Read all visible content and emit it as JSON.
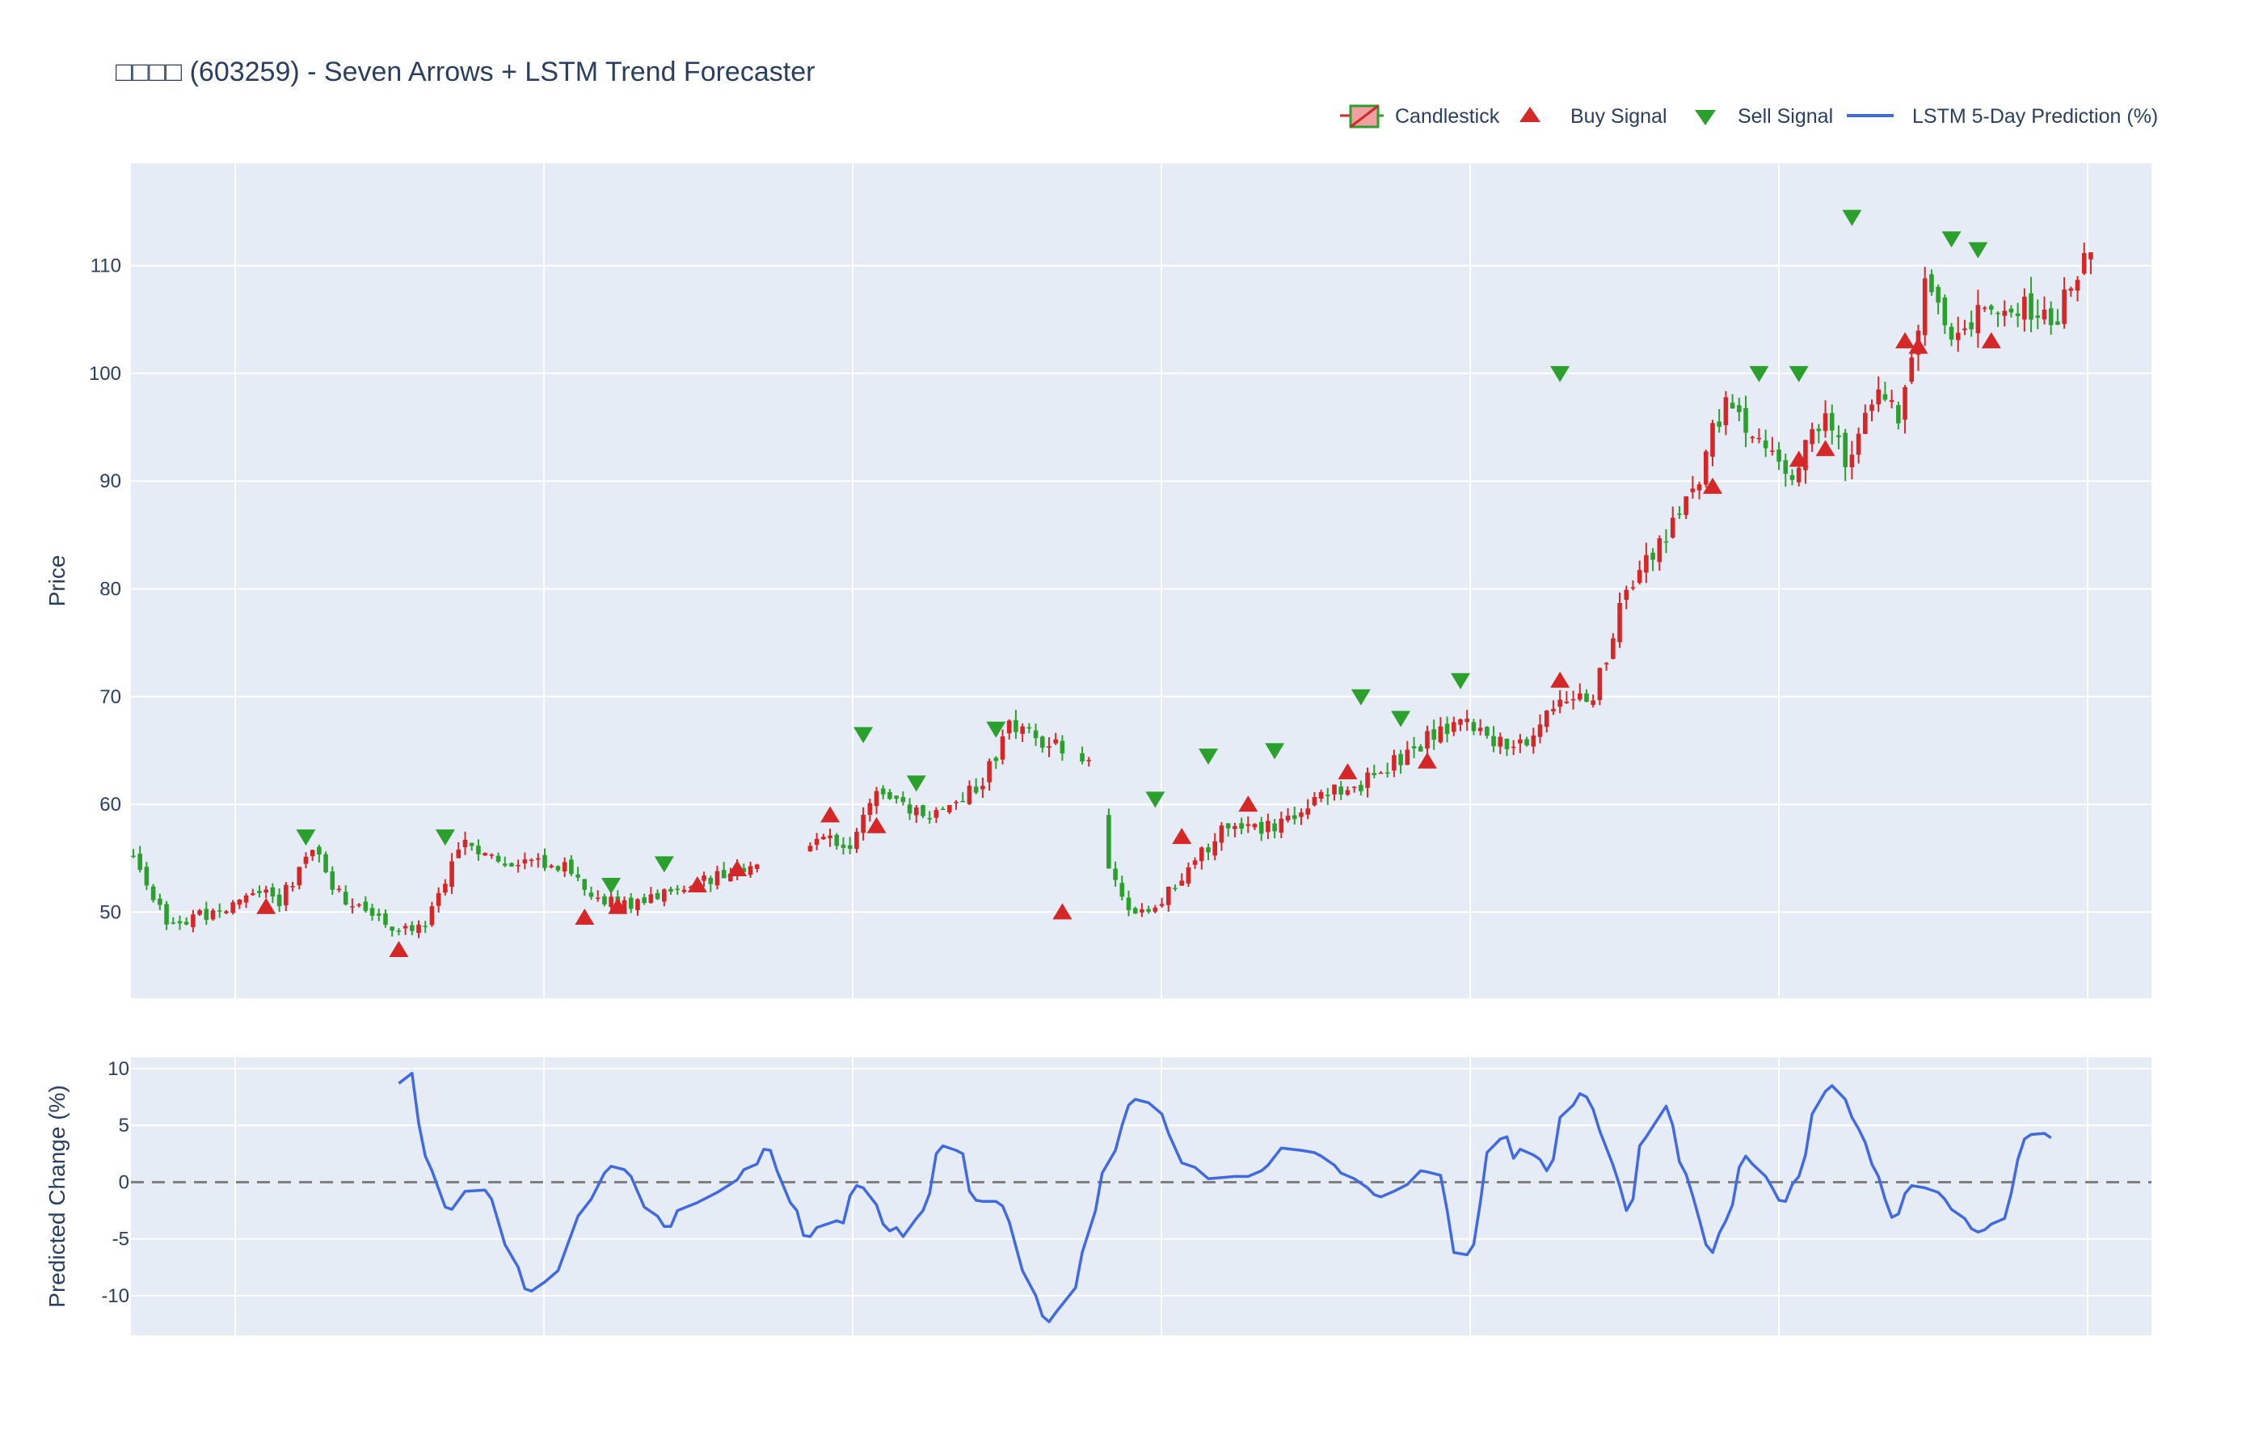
{
  "chart_data": [
    {
      "type": "candlestick",
      "title": "□□□□ (603259) - Seven Arrows + LSTM Trend Forecaster",
      "ylabel": "Price",
      "ylim": [
        42,
        119.5
      ],
      "yticks": [
        50,
        60,
        70,
        80,
        90,
        100,
        110
      ],
      "legend_position": "top-right",
      "legend": [
        {
          "label": "Candlestick",
          "kind": "candle"
        },
        {
          "label": "Buy Signal",
          "kind": "buy"
        },
        {
          "label": "Sell Signal",
          "kind": "sell"
        },
        {
          "label": "LSTM 5-Day Prediction (%)",
          "kind": "line"
        }
      ],
      "colors": {
        "up": "#d62728",
        "down": "#2ca02c",
        "buy": "#d62728",
        "sell": "#2ca02c",
        "plot_bg": "#e5ecf6",
        "grid": "#ffffff",
        "line": "#4169e1"
      },
      "anchors": [
        [
          0,
          55
        ],
        [
          5,
          49
        ],
        [
          12,
          50
        ],
        [
          18,
          52
        ],
        [
          22,
          51
        ],
        [
          27,
          56
        ],
        [
          30,
          52
        ],
        [
          36,
          50
        ],
        [
          40,
          48
        ],
        [
          44,
          49
        ],
        [
          50,
          57
        ],
        [
          54,
          55
        ],
        [
          60,
          54.5
        ],
        [
          65,
          54
        ],
        [
          70,
          51
        ],
        [
          75,
          50.5
        ],
        [
          80,
          52
        ],
        [
          85,
          53
        ],
        [
          90,
          53.5
        ],
        [
          98,
          54
        ],
        [
          104,
          57
        ],
        [
          108,
          56.5
        ],
        [
          112,
          62
        ],
        [
          116,
          60
        ],
        [
          120,
          59
        ],
        [
          124,
          60
        ],
        [
          128,
          62
        ],
        [
          132,
          67
        ],
        [
          136,
          66
        ],
        [
          140,
          65
        ],
        [
          145,
          64
        ],
        [
          147,
          54
        ],
        [
          150,
          50
        ],
        [
          155,
          51
        ],
        [
          160,
          55
        ],
        [
          165,
          58
        ],
        [
          170,
          57.5
        ],
        [
          175,
          59
        ],
        [
          180,
          61
        ],
        [
          185,
          62
        ],
        [
          190,
          64
        ],
        [
          195,
          66
        ],
        [
          200,
          68
        ],
        [
          205,
          66
        ],
        [
          210,
          65
        ],
        [
          215,
          70
        ],
        [
          220,
          70
        ],
        [
          225,
          80
        ],
        [
          230,
          84
        ],
        [
          235,
          89
        ],
        [
          240,
          98
        ],
        [
          245,
          93
        ],
        [
          250,
          91
        ],
        [
          255,
          97
        ],
        [
          258,
          92
        ],
        [
          262,
          98
        ],
        [
          266,
          96
        ],
        [
          270,
          108
        ],
        [
          274,
          103
        ],
        [
          278,
          106
        ],
        [
          282,
          107
        ],
        [
          286,
          106
        ],
        [
          290,
          105
        ],
        [
          294,
          111
        ]
      ],
      "gaps": [
        [
          95,
          101
        ],
        [
          141,
          142
        ],
        [
          145,
          146
        ]
      ],
      "n_days": 295,
      "buy_signals": [
        [
          20,
          50.5
        ],
        [
          40,
          46.5
        ],
        [
          68,
          49.5
        ],
        [
          73,
          50.5
        ],
        [
          85,
          52.5
        ],
        [
          91,
          54
        ],
        [
          105,
          59
        ],
        [
          112,
          58
        ],
        [
          140,
          50
        ],
        [
          158,
          57
        ],
        [
          168,
          60
        ],
        [
          183,
          63
        ],
        [
          195,
          64
        ],
        [
          215,
          71.5
        ],
        [
          238,
          89.5
        ],
        [
          251,
          92
        ],
        [
          255,
          93
        ],
        [
          267,
          103
        ],
        [
          269,
          102.5
        ],
        [
          280,
          103
        ]
      ],
      "sell_signals": [
        [
          26,
          57
        ],
        [
          47,
          57
        ],
        [
          72,
          52.5
        ],
        [
          80,
          54.5
        ],
        [
          110,
          66.5
        ],
        [
          118,
          62
        ],
        [
          130,
          67
        ],
        [
          154,
          60.5
        ],
        [
          162,
          64.5
        ],
        [
          172,
          65
        ],
        [
          185,
          70
        ],
        [
          191,
          68
        ],
        [
          200,
          71.5
        ],
        [
          215,
          100
        ],
        [
          245,
          100
        ],
        [
          251,
          100
        ],
        [
          259,
          114.5
        ],
        [
          274,
          112.5
        ],
        [
          278,
          111.5
        ]
      ]
    },
    {
      "type": "line",
      "ylabel": "Predicted Change (%)",
      "ylim": [
        -13.5,
        11
      ],
      "yticks": [
        -10,
        -5,
        0,
        5,
        10
      ],
      "zero_line": true,
      "series": [
        {
          "points": [
            [
              40,
              8.7
            ],
            [
              42,
              9.6
            ],
            [
              43,
              5.2
            ],
            [
              44,
              2.3
            ],
            [
              45,
              1
            ],
            [
              47,
              -2.2
            ],
            [
              48,
              -2.4
            ],
            [
              50,
              -0.8
            ],
            [
              53,
              -0.7
            ],
            [
              54,
              -1.5
            ],
            [
              56,
              -5.5
            ],
            [
              58,
              -7.5
            ],
            [
              59,
              -9.4
            ],
            [
              60,
              -9.6
            ],
            [
              62,
              -8.8
            ],
            [
              64,
              -7.8
            ],
            [
              65,
              -6.2
            ],
            [
              67,
              -3
            ],
            [
              69,
              -1.5
            ],
            [
              71,
              0.8
            ],
            [
              72,
              1.4
            ],
            [
              74,
              1.1
            ],
            [
              75,
              0.5
            ],
            [
              77,
              -2.2
            ],
            [
              79,
              -3
            ],
            [
              80,
              -3.9
            ],
            [
              81,
              -3.9
            ],
            [
              82,
              -2.5
            ],
            [
              85,
              -1.8
            ],
            [
              88,
              -0.9
            ],
            [
              91,
              0.2
            ],
            [
              92,
              1.1
            ],
            [
              94,
              1.6
            ],
            [
              95,
              2.9
            ],
            [
              96,
              2.8
            ],
            [
              97,
              1
            ],
            [
              99,
              -1.8
            ],
            [
              100,
              -2.5
            ],
            [
              101,
              -4.7
            ],
            [
              102,
              -4.8
            ],
            [
              103,
              -4
            ],
            [
              105,
              -3.6
            ],
            [
              106,
              -3.4
            ],
            [
              107,
              -3.6
            ],
            [
              108,
              -1.2
            ],
            [
              109,
              -0.3
            ],
            [
              110,
              -0.5
            ],
            [
              112,
              -2
            ],
            [
              113,
              -3.7
            ],
            [
              114,
              -4.3
            ],
            [
              115,
              -4
            ],
            [
              116,
              -4.8
            ],
            [
              118,
              -3.2
            ],
            [
              119,
              -2.5
            ],
            [
              120,
              -1
            ],
            [
              121,
              2.5
            ],
            [
              122,
              3.2
            ],
            [
              124,
              2.8
            ],
            [
              125,
              2.5
            ],
            [
              126,
              -0.8
            ],
            [
              127,
              -1.6
            ],
            [
              128,
              -1.7
            ],
            [
              130,
              -1.7
            ],
            [
              131,
              -2.1
            ],
            [
              132,
              -3.5
            ],
            [
              134,
              -7.8
            ],
            [
              136,
              -10
            ],
            [
              137,
              -11.8
            ],
            [
              138,
              -12.3
            ],
            [
              139,
              -11.5
            ],
            [
              142,
              -9.3
            ],
            [
              143,
              -6.2
            ],
            [
              145,
              -2.5
            ],
            [
              146,
              0.8
            ],
            [
              148,
              2.8
            ],
            [
              149,
              5
            ],
            [
              150,
              6.8
            ],
            [
              151,
              7.3
            ],
            [
              153,
              7
            ],
            [
              155,
              6
            ],
            [
              156,
              4.3
            ],
            [
              158,
              1.7
            ],
            [
              160,
              1.3
            ],
            [
              162,
              0.3
            ],
            [
              166,
              0.5
            ],
            [
              168,
              0.5
            ],
            [
              170,
              1
            ],
            [
              171,
              1.5
            ],
            [
              173,
              3
            ],
            [
              176,
              2.8
            ],
            [
              178,
              2.6
            ],
            [
              179,
              2.3
            ],
            [
              181,
              1.5
            ],
            [
              182,
              0.8
            ],
            [
              184,
              0.3
            ],
            [
              186,
              -0.5
            ],
            [
              187,
              -1.1
            ],
            [
              188,
              -1.3
            ],
            [
              190,
              -0.8
            ],
            [
              192,
              -0.2
            ],
            [
              194,
              1
            ],
            [
              195,
              0.9
            ],
            [
              197,
              0.6
            ],
            [
              198,
              -2.5
            ],
            [
              199,
              -6.2
            ],
            [
              201,
              -6.4
            ],
            [
              202,
              -5.5
            ],
            [
              203,
              -1.8
            ],
            [
              204,
              2.6
            ],
            [
              205,
              3.2
            ],
            [
              206,
              3.8
            ],
            [
              207,
              4
            ],
            [
              208,
              2.1
            ],
            [
              209,
              2.9
            ],
            [
              211,
              2.4
            ],
            [
              212,
              2
            ],
            [
              213,
              1
            ],
            [
              214,
              2
            ],
            [
              215,
              5.7
            ],
            [
              217,
              6.8
            ],
            [
              218,
              7.8
            ],
            [
              219,
              7.5
            ],
            [
              220,
              6.4
            ],
            [
              221,
              4.5
            ],
            [
              223,
              1.5
            ],
            [
              224,
              -0.3
            ],
            [
              225,
              -2.5
            ],
            [
              226,
              -1.5
            ],
            [
              227,
              3.2
            ],
            [
              228,
              4
            ],
            [
              230,
              5.8
            ],
            [
              231,
              6.7
            ],
            [
              232,
              5
            ],
            [
              233,
              1.8
            ],
            [
              234,
              0.7
            ],
            [
              235,
              -1.2
            ],
            [
              236,
              -3.3
            ],
            [
              237,
              -5.5
            ],
            [
              238,
              -6.2
            ],
            [
              239,
              -4.5
            ],
            [
              240,
              -3.4
            ],
            [
              241,
              -2
            ],
            [
              242,
              1.3
            ],
            [
              243,
              2.3
            ],
            [
              244,
              1.6
            ],
            [
              246,
              0.5
            ],
            [
              247,
              -0.5
            ],
            [
              248,
              -1.6
            ],
            [
              249,
              -1.7
            ],
            [
              250,
              -0.2
            ],
            [
              251,
              0.5
            ],
            [
              252,
              2.4
            ],
            [
              253,
              6
            ],
            [
              254,
              7
            ],
            [
              255,
              8
            ],
            [
              256,
              8.5
            ],
            [
              258,
              7.3
            ],
            [
              259,
              5.7
            ],
            [
              260,
              4.7
            ],
            [
              261,
              3.5
            ],
            [
              262,
              1.6
            ],
            [
              263,
              0.5
            ],
            [
              264,
              -1.5
            ],
            [
              265,
              -3.1
            ],
            [
              266,
              -2.8
            ],
            [
              267,
              -1
            ],
            [
              268,
              -0.3
            ],
            [
              270,
              -0.5
            ],
            [
              272,
              -0.9
            ],
            [
              273,
              -1.5
            ],
            [
              274,
              -2.4
            ],
            [
              276,
              -3.2
            ],
            [
              277,
              -4.1
            ],
            [
              278,
              -4.4
            ],
            [
              279,
              -4.2
            ],
            [
              280,
              -3.7
            ],
            [
              282,
              -3.2
            ],
            [
              283,
              -1
            ],
            [
              284,
              2
            ],
            [
              285,
              3.8
            ],
            [
              286,
              4.2
            ],
            [
              288,
              4.3
            ],
            [
              289,
              3.9
            ]
          ]
        }
      ]
    }
  ]
}
